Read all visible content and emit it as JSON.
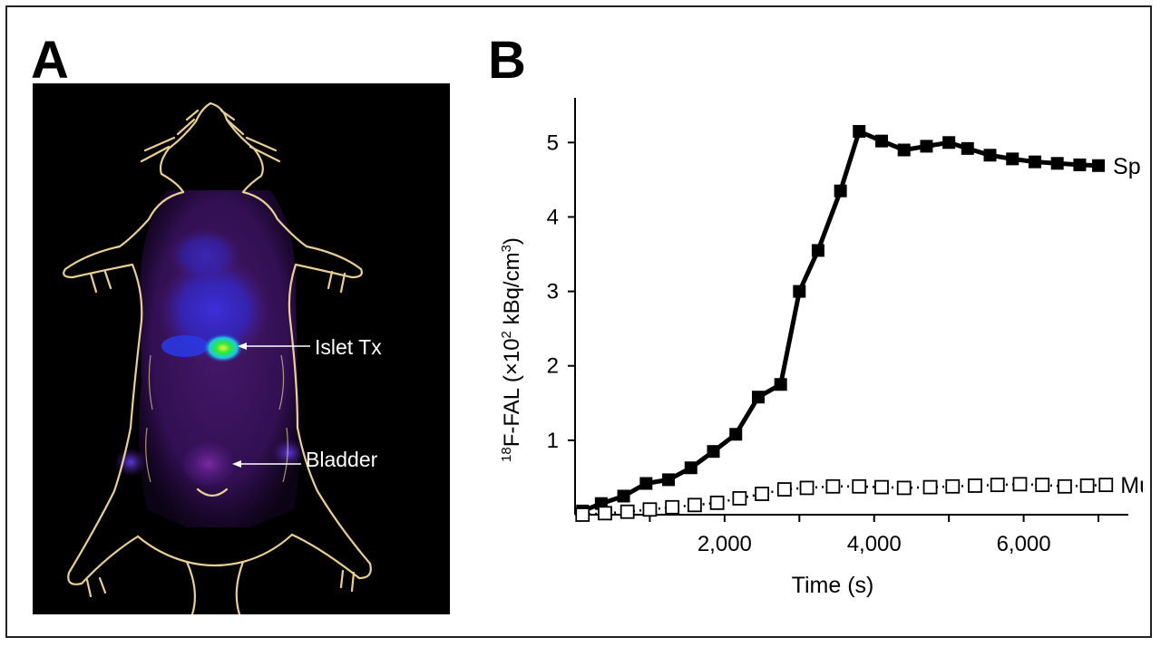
{
  "panels": {
    "a": {
      "letter": "A",
      "labels": {
        "islet": "Islet Tx",
        "bladder": "Bladder"
      }
    },
    "b": {
      "letter": "B"
    }
  },
  "colors": {
    "background": "#ffffff",
    "pet_background": "#000000",
    "outline": "#e8cf98",
    "uptake_low": "#5a1c78",
    "uptake_mid": "#2438e0",
    "uptake_high": "#2ee83a",
    "series_line": "#000000"
  },
  "chart_data": {
    "type": "line",
    "xlabel": "Time (s)",
    "ylabel_sup": "18",
    "ylabel_main": "F-FAL (×10",
    "ylabel_sup2": "2",
    "ylabel_tail": " kBq/cm",
    "ylabel_sup3": "3",
    "ylabel_close": ")",
    "xlim": [
      0,
      7400
    ],
    "ylim": [
      0,
      5.6
    ],
    "xticks": [
      1000,
      2000,
      3000,
      4000,
      5000,
      6000,
      7000
    ],
    "xtick_labels": [
      "2,000",
      "4,000",
      "6,000"
    ],
    "xtick_label_values": [
      2000,
      4000,
      6000
    ],
    "yticks": [
      1,
      2,
      3,
      4,
      5
    ],
    "ytick_labels": [
      "1",
      "2",
      "3",
      "4",
      "5"
    ],
    "series": [
      {
        "name": "Sp",
        "marker": "filled-square",
        "x": [
          100,
          350,
          650,
          950,
          1250,
          1550,
          1850,
          2150,
          2450,
          2750,
          3000,
          3250,
          3550,
          3800,
          4100,
          4400,
          4700,
          5000,
          5250,
          5550,
          5850,
          6150,
          6450,
          6750,
          7000
        ],
        "y": [
          0.05,
          0.15,
          0.25,
          0.42,
          0.47,
          0.63,
          0.85,
          1.08,
          1.58,
          1.75,
          3.0,
          3.55,
          4.35,
          5.15,
          5.02,
          4.9,
          4.95,
          5.0,
          4.92,
          4.83,
          4.78,
          4.74,
          4.72,
          4.7,
          4.69
        ]
      },
      {
        "name": "Mu",
        "marker": "open-square",
        "x": [
          100,
          400,
          700,
          1000,
          1300,
          1600,
          1900,
          2200,
          2500,
          2800,
          3100,
          3450,
          3800,
          4100,
          4400,
          4750,
          5050,
          5350,
          5650,
          5950,
          6250,
          6550,
          6850,
          7100
        ],
        "y": [
          0.0,
          0.02,
          0.04,
          0.07,
          0.1,
          0.13,
          0.16,
          0.22,
          0.28,
          0.34,
          0.36,
          0.38,
          0.38,
          0.37,
          0.36,
          0.37,
          0.38,
          0.39,
          0.4,
          0.41,
          0.4,
          0.38,
          0.39,
          0.4
        ]
      }
    ]
  }
}
